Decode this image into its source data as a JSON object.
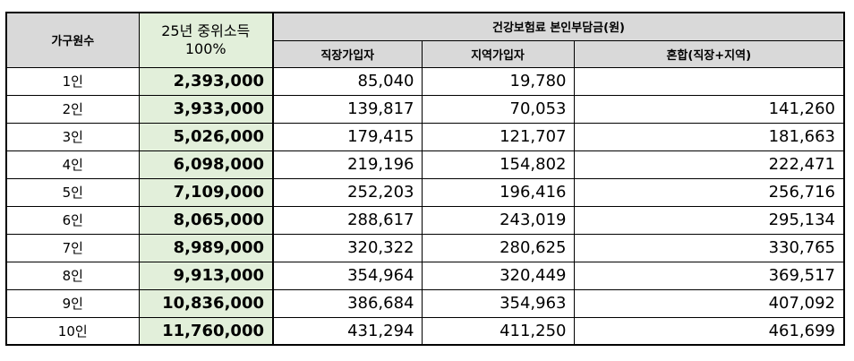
{
  "table": {
    "headers": {
      "household": "가구원수",
      "income_line1": "25년 중위소득",
      "income_line2": "100%",
      "premium_group": "건강보험료 본인부담금(원)",
      "employee": "직장가입자",
      "regional": "지역가입자",
      "mixed": "혼합(직장+지역)"
    },
    "rows": [
      {
        "household": "1인",
        "income": "2,393,000",
        "employee": "85,040",
        "regional": "19,780",
        "mixed": ""
      },
      {
        "household": "2인",
        "income": "3,933,000",
        "employee": "139,817",
        "regional": "70,053",
        "mixed": "141,260"
      },
      {
        "household": "3인",
        "income": "5,026,000",
        "employee": "179,415",
        "regional": "121,707",
        "mixed": "181,663"
      },
      {
        "household": "4인",
        "income": "6,098,000",
        "employee": "219,196",
        "regional": "154,802",
        "mixed": "222,471"
      },
      {
        "household": "5인",
        "income": "7,109,000",
        "employee": "252,203",
        "regional": "196,416",
        "mixed": "256,716"
      },
      {
        "household": "6인",
        "income": "8,065,000",
        "employee": "288,617",
        "regional": "243,019",
        "mixed": "295,134"
      },
      {
        "household": "7인",
        "income": "8,989,000",
        "employee": "320,322",
        "regional": "280,625",
        "mixed": "330,765"
      },
      {
        "household": "8인",
        "income": "9,913,000",
        "employee": "354,964",
        "regional": "320,449",
        "mixed": "369,517"
      },
      {
        "household": "9인",
        "income": "10,836,000",
        "employee": "386,684",
        "regional": "354,963",
        "mixed": "407,092"
      },
      {
        "household": "10인",
        "income": "11,760,000",
        "employee": "431,294",
        "regional": "411,250",
        "mixed": "461,699"
      }
    ]
  }
}
